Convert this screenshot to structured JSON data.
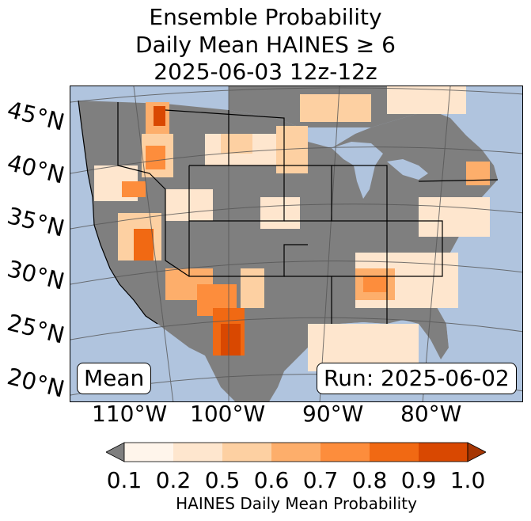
{
  "title": {
    "line1": "Ensemble Probability",
    "line2": "Daily Mean HAINES ≥ 6",
    "line3": "2025-06-03 12z-12z"
  },
  "map": {
    "ocean_color": "#b0c4de",
    "land_nodata_color": "#7f7f7f",
    "lat_labels": [
      "45°N",
      "40°N",
      "35°N",
      "30°N",
      "25°N",
      "20°N"
    ],
    "lon_labels": [
      "110°W",
      "100°W",
      "90°W",
      "80°W"
    ],
    "mean_label": "Mean",
    "run_label": "Run: 2025-06-02"
  },
  "colorbar": {
    "ticks": [
      "0.1",
      "0.2",
      "0.5",
      "0.6",
      "0.7",
      "0.8",
      "0.9",
      "1.0"
    ],
    "colors": [
      "#7f7f7f",
      "#fff5eb",
      "#fee6ce",
      "#fdd0a2",
      "#fdae6b",
      "#fd8d3c",
      "#f16913",
      "#d94801",
      "#a63603"
    ],
    "label": "HAINES Daily Mean Probability"
  }
}
